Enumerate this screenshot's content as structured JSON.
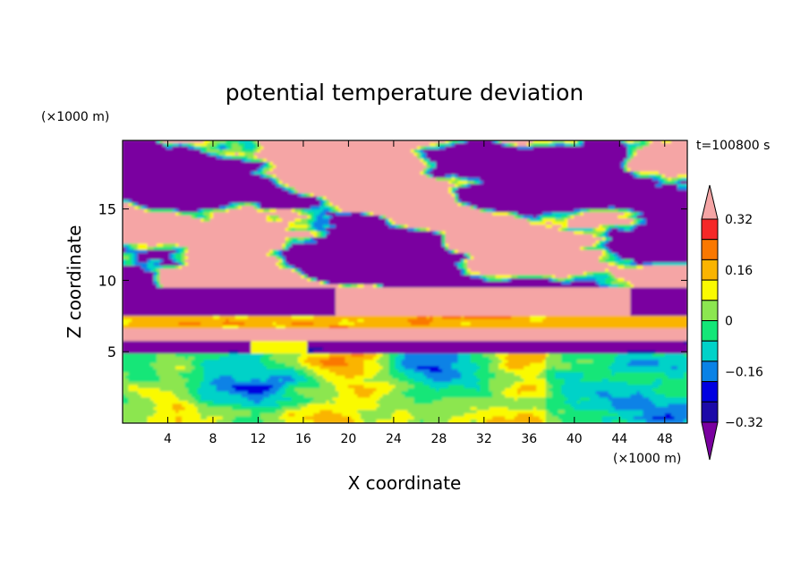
{
  "chart_data": {
    "type": "heatmap",
    "title": "potential temperature deviation",
    "xlabel": "X coordinate",
    "ylabel": "Z coordinate",
    "x_unit": "(×1000 m)",
    "y_unit": "(×1000 m)",
    "time_label": "t=100800 s",
    "xlim": [
      0,
      50
    ],
    "ylim": [
      0,
      19.8
    ],
    "x_ticks": [
      4,
      8,
      12,
      16,
      20,
      24,
      28,
      32,
      36,
      40,
      44,
      48
    ],
    "y_ticks": [
      5,
      10,
      15
    ],
    "colorbar": {
      "levels": [
        -0.4,
        -0.32,
        -0.24,
        -0.16,
        -0.08,
        0,
        0.08,
        0.16,
        0.24,
        0.32,
        0.4
      ],
      "labels": [
        "-0.32",
        "-0.16",
        "0",
        "0.16",
        "0.32"
      ],
      "label_values": [
        -0.32,
        -0.16,
        0,
        0.16,
        0.32
      ],
      "colors": [
        "#7a00a0",
        "#1c0aa8",
        "#0000e0",
        "#0a82e6",
        "#00d2c8",
        "#14e678",
        "#8ce650",
        "#fafa00",
        "#fab400",
        "#fa7800",
        "#f52828",
        "#f5a5a5"
      ],
      "extend": "both"
    }
  }
}
